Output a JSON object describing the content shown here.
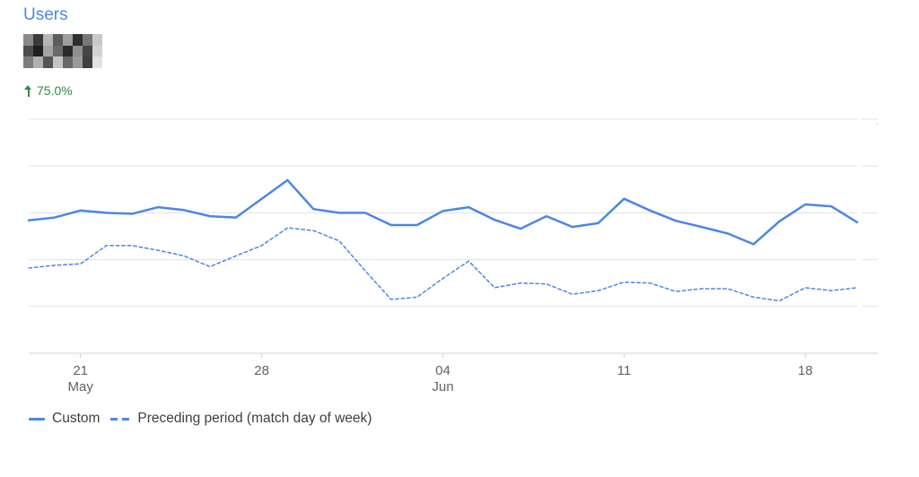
{
  "card": {
    "title": "Users",
    "change_text": "75.0%",
    "change_icon": "arrow-up-icon",
    "value_redacted": true
  },
  "colors": {
    "accent": "#4a86e8",
    "positive": "#2e8b3e",
    "grid": "#e0e0e0",
    "tick_text": "#5f6368"
  },
  "legend": {
    "custom_label": "Custom",
    "preceding_label": "Preceding period (match day of week)"
  },
  "chart_data": {
    "type": "line",
    "title": "",
    "xlabel": "",
    "ylabel": "",
    "y_axis_labels_visible": false,
    "grid": true,
    "legend_position": "bottom-left",
    "x": [
      "May 19",
      "May 20",
      "May 21",
      "May 22",
      "May 23",
      "May 24",
      "May 25",
      "May 26",
      "May 27",
      "May 28",
      "May 29",
      "May 30",
      "May 31",
      "Jun 01",
      "Jun 02",
      "Jun 03",
      "Jun 04",
      "Jun 05",
      "Jun 06",
      "Jun 07",
      "Jun 08",
      "Jun 09",
      "Jun 10",
      "Jun 11",
      "Jun 12",
      "Jun 13",
      "Jun 14",
      "Jun 15",
      "Jun 16",
      "Jun 17",
      "Jun 18",
      "Jun 19",
      "Jun 20"
    ],
    "x_ticks": [
      {
        "index": 2,
        "day": "21",
        "month": "May"
      },
      {
        "index": 9,
        "day": "28",
        "month": ""
      },
      {
        "index": 16,
        "day": "04",
        "month": "Jun"
      },
      {
        "index": 23,
        "day": "11",
        "month": ""
      },
      {
        "index": 30,
        "day": "18",
        "month": ""
      }
    ],
    "ylim": [
      0,
      5
    ],
    "series": [
      {
        "name": "Custom",
        "style": "solid",
        "values": [
          2.84,
          2.9,
          3.05,
          3.0,
          2.98,
          3.12,
          3.06,
          2.93,
          2.9,
          3.3,
          3.7,
          3.08,
          3.0,
          3.0,
          2.74,
          2.74,
          3.04,
          3.12,
          2.85,
          2.66,
          2.93,
          2.7,
          2.78,
          3.3,
          3.05,
          2.83,
          2.7,
          2.56,
          2.33,
          2.82,
          3.18,
          3.14,
          2.8
        ]
      },
      {
        "name": "Preceding period (match day of week)",
        "style": "dashed",
        "values": [
          1.82,
          1.88,
          1.91,
          2.3,
          2.3,
          2.2,
          2.08,
          1.85,
          2.08,
          2.3,
          2.68,
          2.62,
          2.4,
          1.76,
          1.15,
          1.2,
          1.6,
          1.97,
          1.4,
          1.5,
          1.48,
          1.26,
          1.34,
          1.52,
          1.5,
          1.32,
          1.38,
          1.38,
          1.2,
          1.12,
          1.4,
          1.34,
          1.4
        ]
      }
    ]
  }
}
